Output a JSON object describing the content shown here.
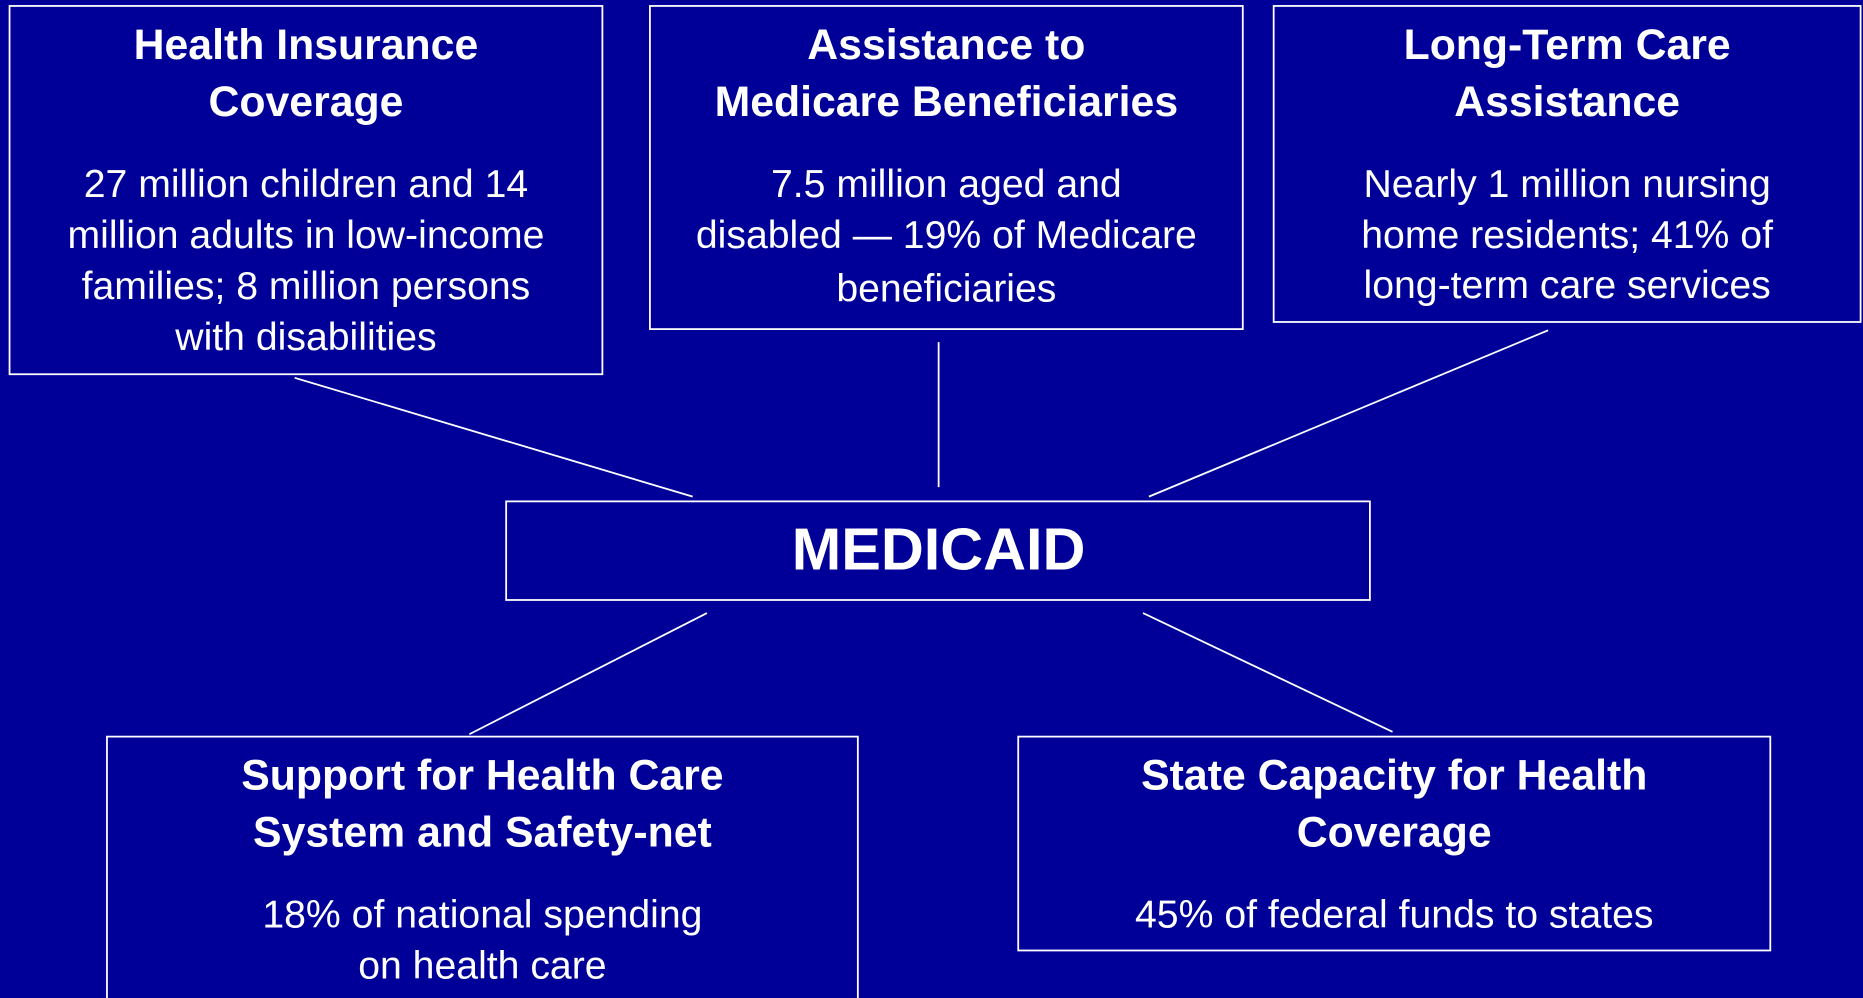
{
  "center": {
    "label": "MEDICAID"
  },
  "nodes": [
    {
      "title_lines": [
        "Health Insurance",
        "Coverage"
      ],
      "body_lines": [
        "27 million children and 14",
        "million adults in low-income",
        "families; 8 million persons",
        "with disabilities"
      ]
    },
    {
      "title_lines": [
        "Assistance to",
        "Medicare Beneficiaries"
      ],
      "body_lines": [
        "7.5 million aged and",
        "disabled — 19% of Medicare",
        "beneficiaries"
      ]
    },
    {
      "title_lines": [
        "Long-Term Care",
        "Assistance"
      ],
      "body_lines": [
        "Nearly 1 million nursing",
        "home residents; 41% of",
        "long-term care services"
      ]
    },
    {
      "title_lines": [
        "Support for Health Care",
        "System and Safety-net"
      ],
      "body_lines": [
        "18% of national spending",
        "on health care"
      ]
    },
    {
      "title_lines": [
        "State Capacity for Health",
        "Coverage"
      ],
      "body_lines": [
        "45% of federal funds to states"
      ]
    }
  ]
}
